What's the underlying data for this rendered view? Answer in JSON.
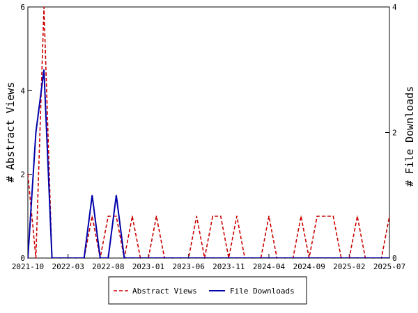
{
  "chart_data": {
    "type": "line",
    "x_tick_labels": [
      "2021-10",
      "2022-03",
      "2022-08",
      "2023-01",
      "2023-06",
      "2023-11",
      "2024-04",
      "2024-09",
      "2025-02",
      "2025-07"
    ],
    "x_start": "2021-10",
    "x_end": "2025-07",
    "ylabel_left": "# Abstract Views",
    "ylabel_right": "# File Downloads",
    "ylim_left": [
      0,
      6
    ],
    "ylim_right": [
      0,
      4
    ],
    "yticks_left": [
      "0",
      "2",
      "4",
      "6"
    ],
    "yticks_right": [
      "0",
      "2",
      "4"
    ],
    "legend_position": "bottom-center",
    "series": [
      {
        "name": "Abstract Views",
        "axis": "left",
        "color": "#cc0000",
        "style": "dashed",
        "x": [
          "2021-10",
          "2021-11",
          "2021-12",
          "2022-01",
          "2022-02",
          "2022-03",
          "2022-04",
          "2022-05",
          "2022-06",
          "2022-07",
          "2022-08",
          "2022-09",
          "2022-10",
          "2022-11",
          "2022-12",
          "2023-01",
          "2023-02",
          "2023-03",
          "2023-04",
          "2023-05",
          "2023-06",
          "2023-07",
          "2023-08",
          "2023-09",
          "2023-10",
          "2023-11",
          "2023-12",
          "2024-01",
          "2024-02",
          "2024-03",
          "2024-04",
          "2024-05",
          "2024-06",
          "2024-07",
          "2024-08",
          "2024-09",
          "2024-10",
          "2024-11",
          "2024-12",
          "2025-01",
          "2025-02",
          "2025-03",
          "2025-04",
          "2025-05",
          "2025-06",
          "2025-07",
          "2025-08"
        ],
        "values": [
          2,
          0,
          6,
          0,
          0,
          0,
          0,
          0,
          1,
          0,
          1,
          1,
          0,
          1,
          0,
          0,
          1,
          0,
          0,
          0,
          0,
          1,
          0,
          1,
          1,
          0,
          1,
          0,
          0,
          0,
          1,
          0,
          0,
          0,
          1,
          0,
          1,
          1,
          1,
          0,
          0,
          1,
          0,
          0,
          0,
          1,
          1
        ]
      },
      {
        "name": "File Downloads",
        "axis": "right",
        "color": "#0000aa",
        "style": "solid",
        "x": [
          "2021-10",
          "2021-11",
          "2021-12",
          "2022-01",
          "2022-02",
          "2022-03",
          "2022-04",
          "2022-05",
          "2022-06",
          "2022-07",
          "2022-08",
          "2022-09",
          "2022-10",
          "2022-11",
          "2022-12",
          "2023-01",
          "2023-02",
          "2023-03",
          "2023-04",
          "2023-05",
          "2023-06",
          "2023-07",
          "2023-08",
          "2023-09",
          "2023-10",
          "2023-11",
          "2023-12",
          "2024-01",
          "2024-02",
          "2024-03",
          "2024-04",
          "2024-05",
          "2024-06",
          "2024-07",
          "2024-08",
          "2024-09",
          "2024-10",
          "2024-11",
          "2024-12",
          "2025-01",
          "2025-02",
          "2025-03",
          "2025-04",
          "2025-05",
          "2025-06",
          "2025-07",
          "2025-08"
        ],
        "values": [
          0,
          2,
          3,
          0,
          0,
          0,
          0,
          0,
          1,
          0,
          0,
          1,
          0,
          0,
          0,
          0,
          0,
          0,
          0,
          0,
          0,
          0,
          0,
          0,
          0,
          0,
          0,
          0,
          0,
          0,
          0,
          0,
          0,
          0,
          0,
          0,
          0,
          0,
          0,
          0,
          0,
          0,
          0,
          0,
          0,
          0,
          0
        ]
      }
    ]
  }
}
